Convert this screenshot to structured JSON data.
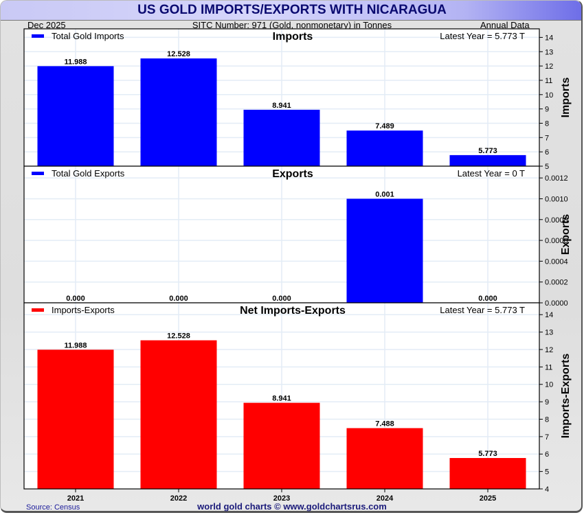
{
  "title": "US GOLD IMPORTS/EXPORTS WITH NICARAGUA",
  "subheader": {
    "date": "Dec  2025",
    "sitc": "SITC Number: 971 (Gold, nonmonetary) in Tonnes",
    "frequency": "Annual Data"
  },
  "footer": {
    "source": "Source: Census",
    "brand": "world gold charts © www.goldchartsrus.com"
  },
  "colors": {
    "imports": "#0000ff",
    "exports": "#0000ff",
    "net": "#ff0000",
    "grid": "#e3ecf6",
    "title": "#0a0a70"
  },
  "chart_data": [
    {
      "type": "bar",
      "title": "Imports",
      "legend": "Total Gold Imports",
      "latest": "Latest Year = 5.773 T",
      "ylabel": "Imports",
      "categories": [
        "2021",
        "2022",
        "2023",
        "2024",
        "2025"
      ],
      "values": [
        11.988,
        12.528,
        8.941,
        7.489,
        5.773
      ],
      "labels": [
        "11.988",
        "12.528",
        "8.941",
        "7.489",
        "5.773"
      ],
      "ylim": [
        5,
        14.5
      ],
      "ticks": [
        "5",
        "6",
        "7",
        "8",
        "9",
        "10",
        "11",
        "12",
        "13",
        "14"
      ],
      "tick_values": [
        5,
        6,
        7,
        8,
        9,
        10,
        11,
        12,
        13,
        14
      ],
      "grid": true,
      "legend_position": "top-left"
    },
    {
      "type": "bar",
      "title": "Exports",
      "legend": "Total Gold Exports",
      "latest": "Latest Year = 0 T",
      "ylabel": "Exports",
      "categories": [
        "2021",
        "2022",
        "2023",
        "2024",
        "2025"
      ],
      "values": [
        0,
        0,
        0,
        0.001,
        0
      ],
      "labels": [
        "0.000",
        "0.000",
        "0.000",
        "0.001",
        "0.000"
      ],
      "ylim": [
        0,
        0.0013
      ],
      "ticks": [
        "0.0000",
        "0.0002",
        "0.0004",
        "0.0006",
        "0.0008",
        "0.0010",
        "0.0012"
      ],
      "tick_values": [
        0,
        0.0002,
        0.0004,
        0.0006,
        0.0008,
        0.001,
        0.0012
      ],
      "grid": true,
      "legend_position": "top-left"
    },
    {
      "type": "bar",
      "title": "Net Imports-Exports",
      "legend": "Imports-Exports",
      "latest": "Latest Year = 5.773 T",
      "ylabel": "Imports-Exports",
      "categories": [
        "2021",
        "2022",
        "2023",
        "2024",
        "2025"
      ],
      "values": [
        11.988,
        12.528,
        8.941,
        7.488,
        5.773
      ],
      "labels": [
        "11.988",
        "12.528",
        "8.941",
        "7.488",
        "5.773"
      ],
      "ylim": [
        4,
        14.6
      ],
      "ticks": [
        "4",
        "5",
        "6",
        "7",
        "8",
        "9",
        "10",
        "11",
        "12",
        "13",
        "14"
      ],
      "tick_values": [
        4,
        5,
        6,
        7,
        8,
        9,
        10,
        11,
        12,
        13,
        14
      ],
      "grid": true,
      "legend_position": "top-left"
    }
  ]
}
